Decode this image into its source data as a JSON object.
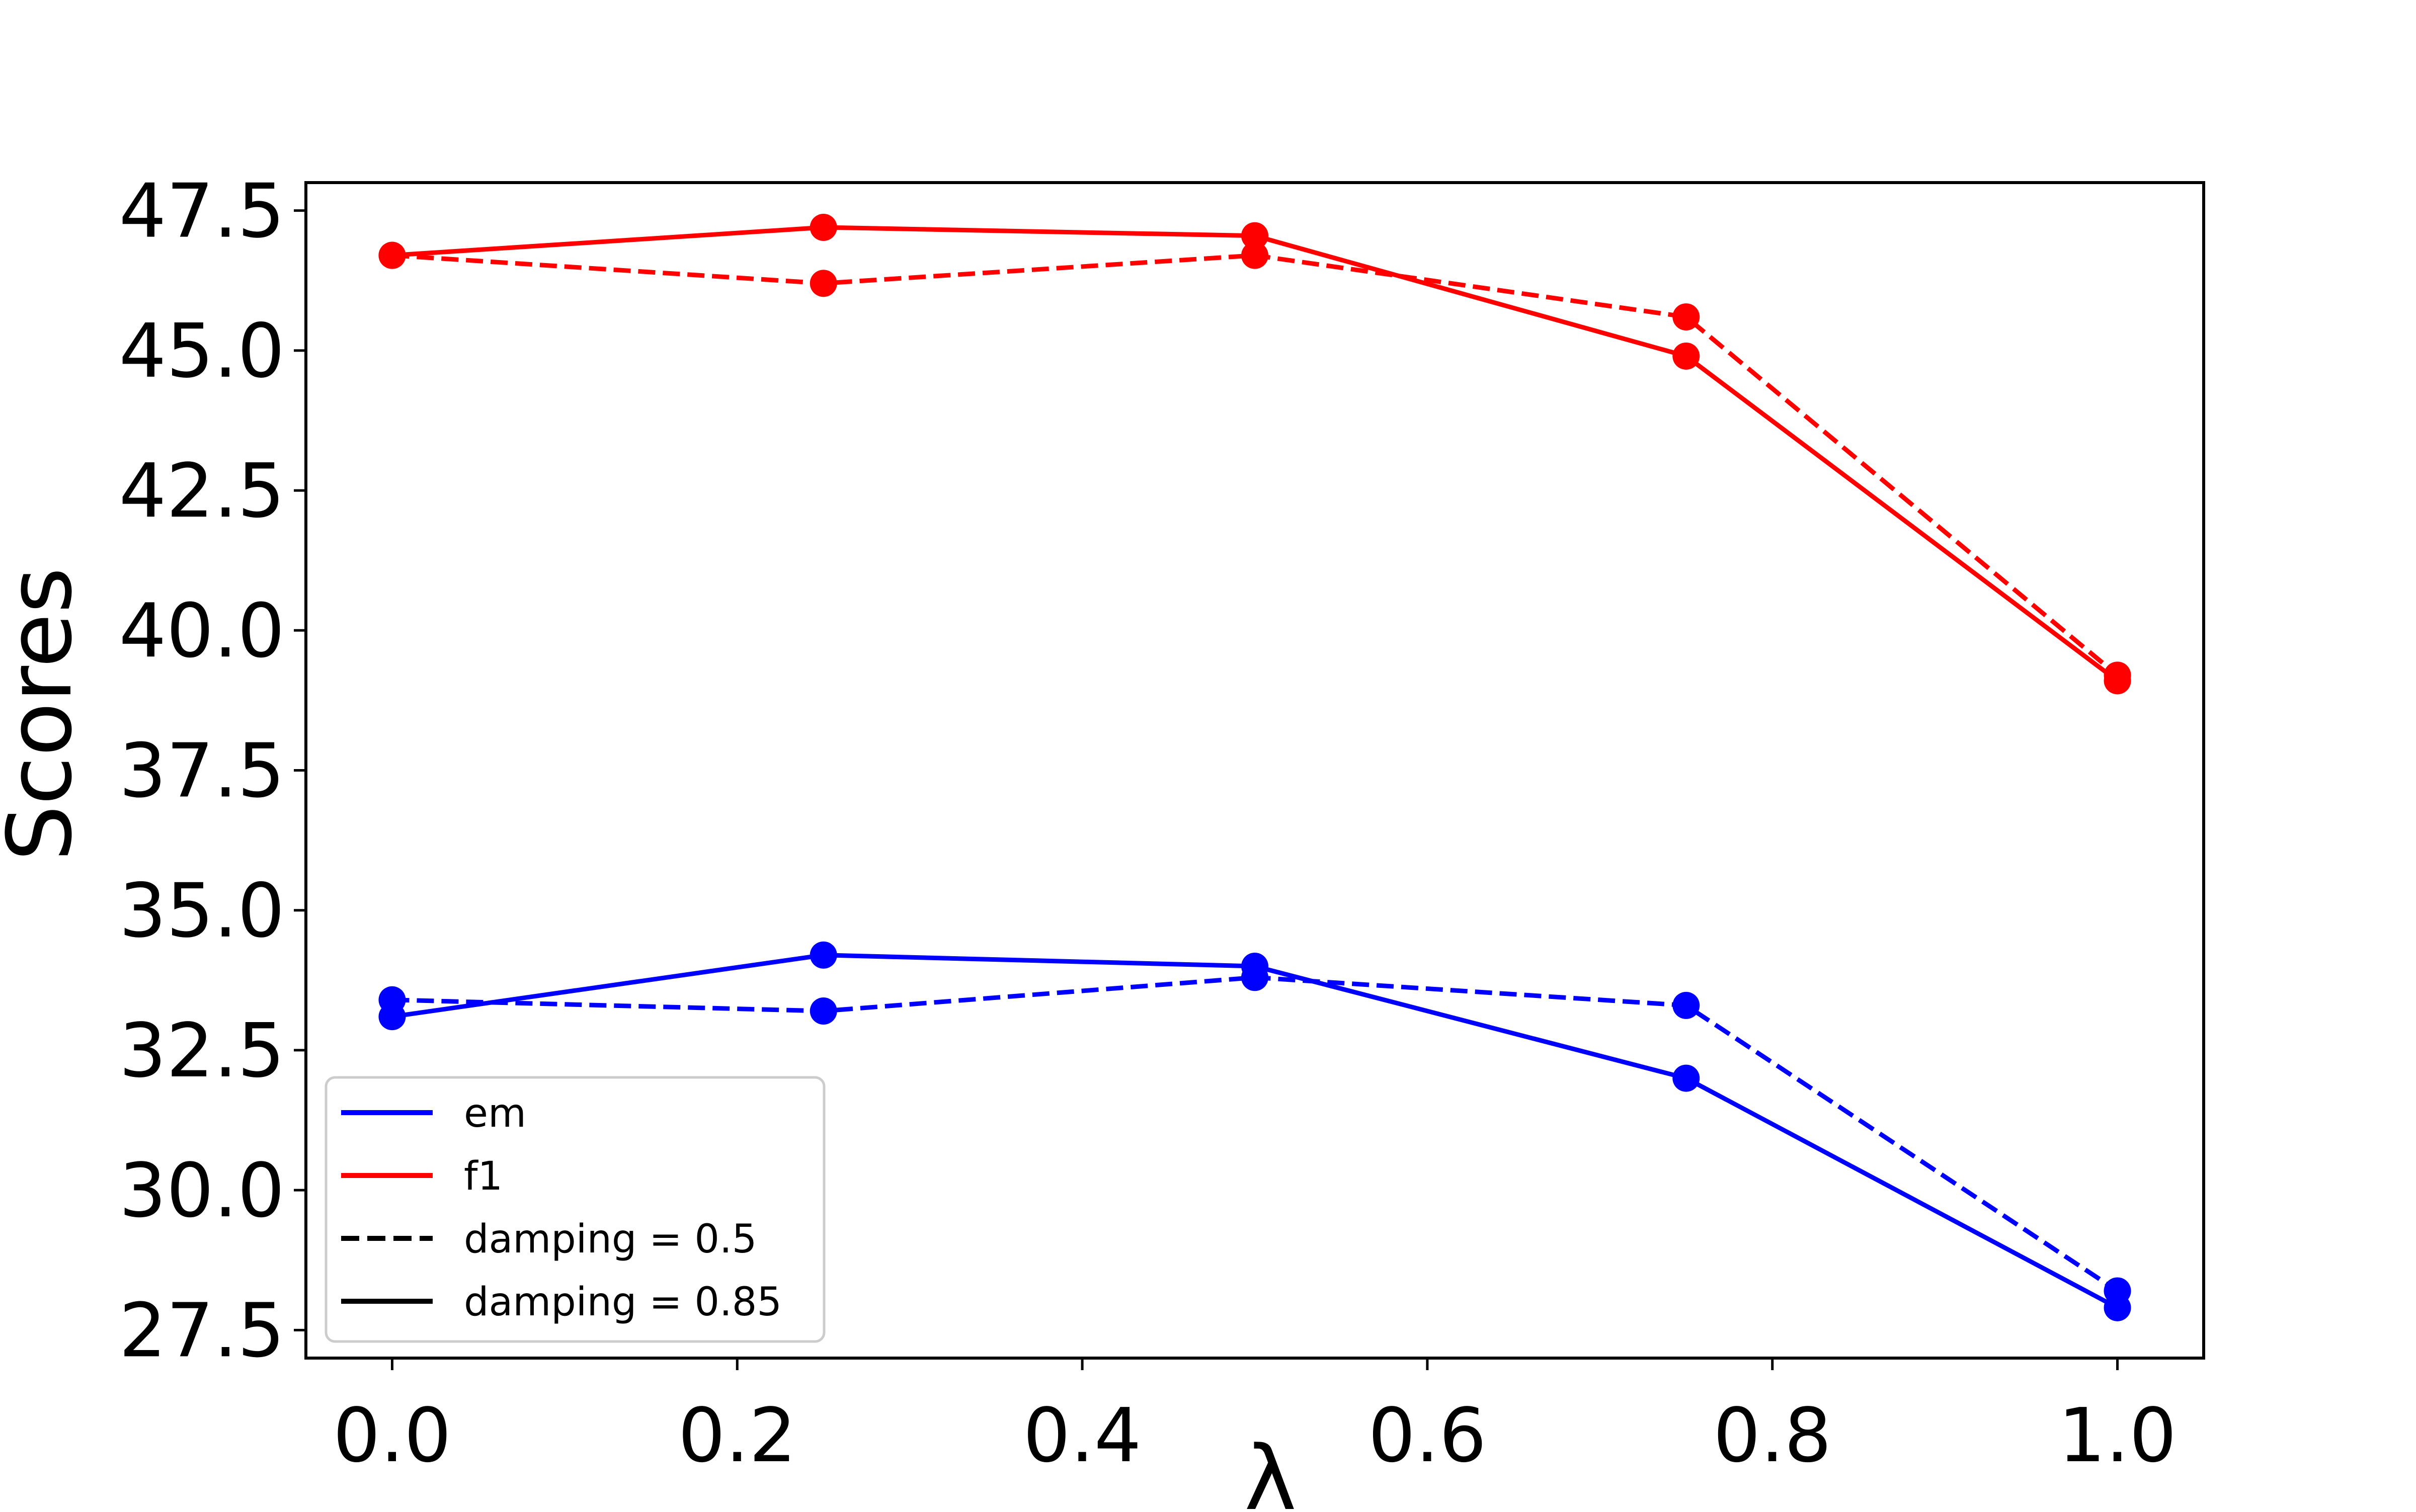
{
  "chart_data": {
    "type": "line",
    "title": "",
    "xlabel": "λ",
    "ylabel": "Scores",
    "xlim": [
      -0.05,
      1.05
    ],
    "ylim": [
      27.0,
      48.0
    ],
    "xticks": [
      0.0,
      0.2,
      0.4,
      0.6,
      0.8,
      1.0
    ],
    "xtick_labels": [
      "0.0",
      "0.2",
      "0.4",
      "0.6",
      "0.8",
      "1.0"
    ],
    "yticks": [
      27.5,
      30.0,
      32.5,
      35.0,
      37.5,
      40.0,
      42.5,
      45.0,
      47.5
    ],
    "ytick_labels": [
      "27.5",
      "30.0",
      "32.5",
      "35.0",
      "37.5",
      "40.0",
      "42.5",
      "45.0",
      "47.5"
    ],
    "grid": false,
    "legend_position": "lower-left",
    "x": [
      0.0,
      0.25,
      0.5,
      0.75,
      1.0
    ],
    "series": [
      {
        "metric": "f1",
        "damping": "0.5",
        "color": "#ff0000",
        "linestyle": "dashed",
        "values": [
          46.7,
          46.2,
          46.7,
          45.6,
          39.2
        ]
      },
      {
        "metric": "f1",
        "damping": "0.85",
        "color": "#ff0000",
        "linestyle": "solid",
        "values": [
          46.7,
          47.2,
          47.05,
          44.9,
          39.1
        ]
      },
      {
        "metric": "em",
        "damping": "0.5",
        "color": "#0000ff",
        "linestyle": "dashed",
        "values": [
          33.4,
          33.2,
          33.8,
          33.3,
          28.2
        ]
      },
      {
        "metric": "em",
        "damping": "0.85",
        "color": "#0000ff",
        "linestyle": "solid",
        "values": [
          33.1,
          34.2,
          34.0,
          32.0,
          27.9
        ]
      }
    ],
    "legend": [
      {
        "label": "em",
        "color": "#0000ff",
        "linestyle": "solid"
      },
      {
        "label": "f1",
        "color": "#ff0000",
        "linestyle": "solid"
      },
      {
        "label": "damping = 0.5",
        "color": "#000000",
        "linestyle": "dashed"
      },
      {
        "label": "damping = 0.85",
        "color": "#000000",
        "linestyle": "solid"
      }
    ]
  }
}
